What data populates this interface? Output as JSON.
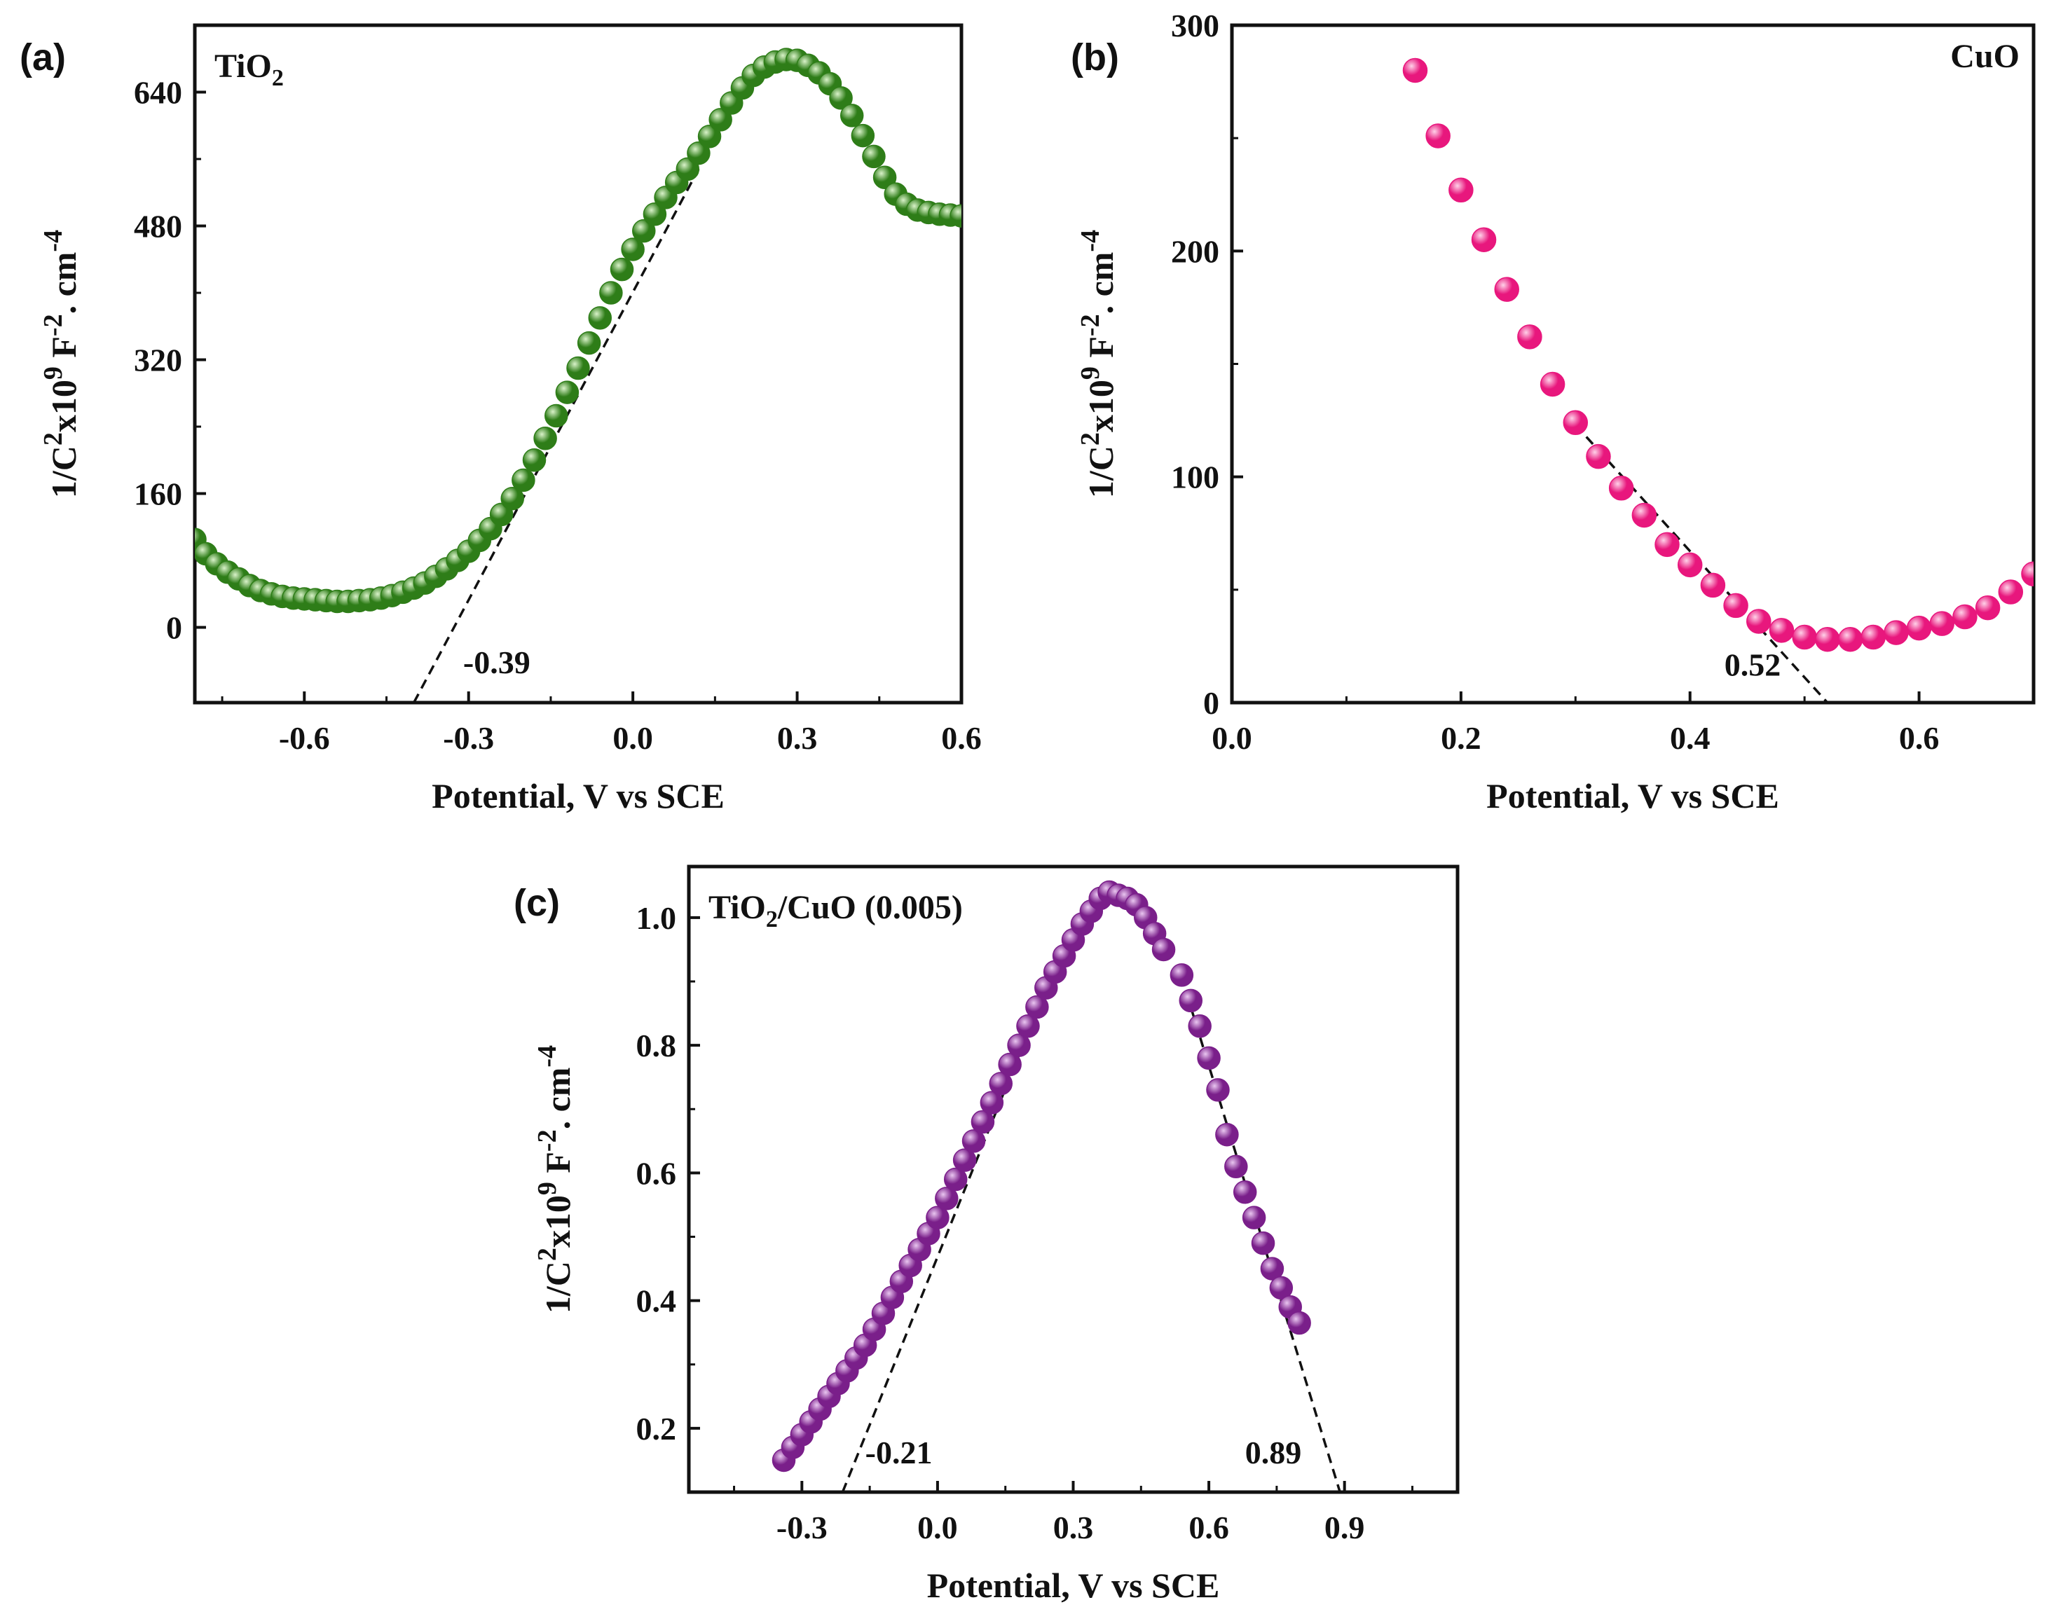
{
  "chart_data": [
    {
      "type": "scatter",
      "panel": "(a)",
      "label_main": "TiO",
      "label_sub": "2",
      "label_tail": "",
      "color": "#2e7d18",
      "highlight": "#d9f2c9",
      "xlim": [
        -0.8,
        0.6
      ],
      "ylim": [
        -90,
        720
      ],
      "xticks": [
        -0.6,
        -0.3,
        0.0,
        0.3,
        0.6
      ],
      "xtick_labels": [
        "-0.6",
        "-0.3",
        "0.0",
        "0.3",
        "0.6"
      ],
      "yticks": [
        0,
        160,
        320,
        480,
        640
      ],
      "ytick_labels": [
        "0",
        "160",
        "320",
        "480",
        "640"
      ],
      "xlabel": "Potential, V vs SCE",
      "ylabel_parts": [
        "1/C",
        "2",
        "x10",
        "9",
        " F",
        "-2",
        ". cm",
        "-4"
      ],
      "x": [
        -0.8,
        -0.78,
        -0.76,
        -0.74,
        -0.72,
        -0.7,
        -0.68,
        -0.66,
        -0.64,
        -0.62,
        -0.6,
        -0.58,
        -0.56,
        -0.54,
        -0.52,
        -0.5,
        -0.48,
        -0.46,
        -0.44,
        -0.42,
        -0.4,
        -0.38,
        -0.36,
        -0.34,
        -0.32,
        -0.3,
        -0.28,
        -0.26,
        -0.24,
        -0.22,
        -0.2,
        -0.18,
        -0.16,
        -0.14,
        -0.12,
        -0.1,
        -0.08,
        -0.06,
        -0.04,
        -0.02,
        0.0,
        0.02,
        0.04,
        0.06,
        0.08,
        0.1,
        0.12,
        0.14,
        0.16,
        0.18,
        0.2,
        0.22,
        0.24,
        0.26,
        0.28,
        0.3,
        0.32,
        0.34,
        0.36,
        0.38,
        0.4,
        0.42,
        0.44,
        0.46,
        0.48,
        0.5,
        0.52,
        0.54,
        0.56,
        0.58,
        0.6
      ],
      "y": [
        105,
        88,
        76,
        66,
        58,
        50,
        44,
        40,
        37,
        35,
        34,
        33,
        32,
        31,
        31,
        32,
        33,
        35,
        38,
        42,
        47,
        53,
        61,
        70,
        80,
        91,
        104,
        118,
        135,
        154,
        176,
        200,
        226,
        253,
        281,
        310,
        340,
        370,
        400,
        428,
        452,
        474,
        494,
        514,
        532,
        548,
        567,
        587,
        607,
        627,
        645,
        660,
        670,
        676,
        679,
        678,
        672,
        663,
        650,
        633,
        612,
        588,
        563,
        538,
        518,
        506,
        499,
        496,
        494,
        493,
        492
      ],
      "fit": {
        "x1": -0.4,
        "y1": -90,
        "x2": 0.12,
        "y2": 548
      },
      "annotations": [
        {
          "text": "-0.39",
          "x": -0.31,
          "y": -55
        }
      ]
    },
    {
      "type": "scatter",
      "panel": "(b)",
      "label_main": "CuO",
      "label_sub": "",
      "label_tail": "",
      "color": "#e8177d",
      "highlight": "#ffd1e8",
      "xlim": [
        0.0,
        0.7
      ],
      "ylim": [
        0,
        300
      ],
      "xticks": [
        0.0,
        0.2,
        0.4,
        0.6
      ],
      "xtick_labels": [
        "0.0",
        "0.2",
        "0.4",
        "0.6"
      ],
      "yticks": [
        0,
        100,
        200,
        300
      ],
      "ytick_labels": [
        "0",
        "100",
        "200",
        "300"
      ],
      "xlabel": "Potential, V vs SCE",
      "ylabel_parts": [
        "1/C",
        "2",
        "x10",
        "9",
        " F",
        "-2",
        ". cm",
        "-4"
      ],
      "x": [
        0.16,
        0.18,
        0.2,
        0.22,
        0.24,
        0.26,
        0.28,
        0.3,
        0.32,
        0.34,
        0.36,
        0.38,
        0.4,
        0.42,
        0.44,
        0.46,
        0.48,
        0.5,
        0.52,
        0.54,
        0.56,
        0.58,
        0.6,
        0.62,
        0.64,
        0.66,
        0.68,
        0.7
      ],
      "y": [
        280,
        251,
        227,
        205,
        183,
        162,
        141,
        124,
        109,
        95,
        83,
        70,
        61,
        52,
        43,
        36,
        32,
        29,
        28,
        28,
        29,
        31,
        33,
        35,
        38,
        42,
        49,
        57
      ],
      "fit": {
        "x1": 0.3,
        "y1": 123,
        "x2": 0.52,
        "y2": 0
      },
      "annotations": [
        {
          "text": "0.52",
          "x": 0.43,
          "y": 12
        }
      ]
    },
    {
      "type": "scatter",
      "panel": "(c)",
      "label_main": "TiO",
      "label_sub": "2",
      "label_tail": "/CuO (0.005)",
      "color": "#7a1f8a",
      "highlight": "#e9c6f0",
      "xlim": [
        -0.55,
        1.15
      ],
      "ylim": [
        0.1,
        1.08
      ],
      "xticks": [
        -0.3,
        0.0,
        0.3,
        0.6,
        0.9
      ],
      "xtick_labels": [
        "-0.3",
        "0.0",
        "0.3",
        "0.6",
        "0.9"
      ],
      "yticks": [
        0.2,
        0.4,
        0.6,
        0.8,
        1.0
      ],
      "ytick_labels": [
        "0.2",
        "0.4",
        "0.6",
        "0.8",
        "1.0"
      ],
      "xlabel": "Potential, V vs SCE",
      "ylabel_parts": [
        "1/C",
        "2",
        "x10",
        "9",
        " F",
        "-2",
        ". cm",
        "-4"
      ],
      "x": [
        -0.34,
        -0.32,
        -0.3,
        -0.28,
        -0.26,
        -0.24,
        -0.22,
        -0.2,
        -0.18,
        -0.16,
        -0.14,
        -0.12,
        -0.1,
        -0.08,
        -0.06,
        -0.04,
        -0.02,
        0.0,
        0.02,
        0.04,
        0.06,
        0.08,
        0.1,
        0.12,
        0.14,
        0.16,
        0.18,
        0.2,
        0.22,
        0.24,
        0.26,
        0.28,
        0.3,
        0.32,
        0.34,
        0.36,
        0.38,
        0.4,
        0.42,
        0.44,
        0.46,
        0.48,
        0.5,
        0.54,
        0.56,
        0.58,
        0.6,
        0.62,
        0.64,
        0.66,
        0.68,
        0.7,
        0.72,
        0.74,
        0.76,
        0.78,
        0.8
      ],
      "y": [
        0.15,
        0.17,
        0.19,
        0.21,
        0.23,
        0.25,
        0.27,
        0.29,
        0.31,
        0.33,
        0.355,
        0.38,
        0.405,
        0.43,
        0.455,
        0.48,
        0.505,
        0.53,
        0.56,
        0.59,
        0.62,
        0.65,
        0.68,
        0.71,
        0.74,
        0.77,
        0.8,
        0.83,
        0.86,
        0.89,
        0.915,
        0.94,
        0.965,
        0.99,
        1.01,
        1.03,
        1.04,
        1.035,
        1.03,
        1.02,
        1.0,
        0.975,
        0.95,
        0.91,
        0.87,
        0.83,
        0.78,
        0.73,
        0.66,
        0.61,
        0.57,
        0.53,
        0.49,
        0.45,
        0.42,
        0.39,
        0.365
      ],
      "fits": [
        {
          "x1": -0.21,
          "y1": 0.1,
          "x2": 0.28,
          "y2": 0.96
        },
        {
          "x1": 0.56,
          "y1": 0.86,
          "x2": 0.89,
          "y2": 0.1
        }
      ],
      "annotations": [
        {
          "text": "-0.21",
          "x": -0.16,
          "y": 0.145
        },
        {
          "text": "0.89",
          "x": 0.68,
          "y": 0.145
        }
      ]
    }
  ]
}
